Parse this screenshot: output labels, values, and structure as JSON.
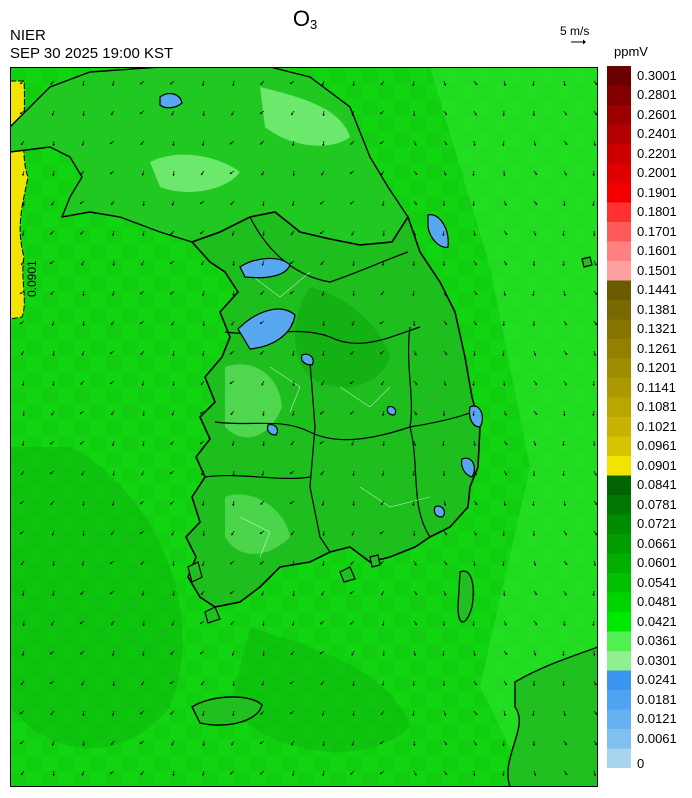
{
  "header": {
    "title_main": "O",
    "title_sub": "3",
    "organization": "NIER",
    "timestamp": "SEP 30 2025 19:00 KST",
    "reference_vector_label": "5 m/s",
    "unit_label": "ppmV"
  },
  "map": {
    "contour_label": "0.0901",
    "sea_color": "#10d410",
    "land_color": "#18c418",
    "low_color": "#58a8f0",
    "high_color": "#f0e400",
    "boundary_color": "#000000"
  },
  "colorbar": {
    "labels": [
      "0.3001",
      "0.2801",
      "0.2601",
      "0.2401",
      "0.2201",
      "0.2001",
      "0.1901",
      "0.1801",
      "0.1701",
      "0.1601",
      "0.1501",
      "0.1441",
      "0.1381",
      "0.1321",
      "0.1261",
      "0.1201",
      "0.1141",
      "0.1081",
      "0.1021",
      "0.0961",
      "0.0901",
      "0.0841",
      "0.0781",
      "0.0721",
      "0.0661",
      "0.0601",
      "0.0541",
      "0.0481",
      "0.0421",
      "0.0361",
      "0.0301",
      "0.0241",
      "0.0181",
      "0.0121",
      "0.0061",
      "0"
    ],
    "colors": [
      "#6b0000",
      "#840000",
      "#9c0000",
      "#b40000",
      "#cc0000",
      "#e00000",
      "#f20000",
      "#ff3030",
      "#ff5a5a",
      "#ff8080",
      "#ffa0a0",
      "#6a5a00",
      "#7a6800",
      "#887400",
      "#948000",
      "#a08c00",
      "#ac9800",
      "#baa600",
      "#c8b400",
      "#d6c400",
      "#f0e400",
      "#006400",
      "#007800",
      "#008c00",
      "#009c00",
      "#00ae00",
      "#00c000",
      "#00d400",
      "#00e800",
      "#50f050",
      "#90f090",
      "#3a96f0",
      "#4ea4f0",
      "#66b2f0",
      "#80c0f0",
      "#a8d4f0"
    ]
  }
}
